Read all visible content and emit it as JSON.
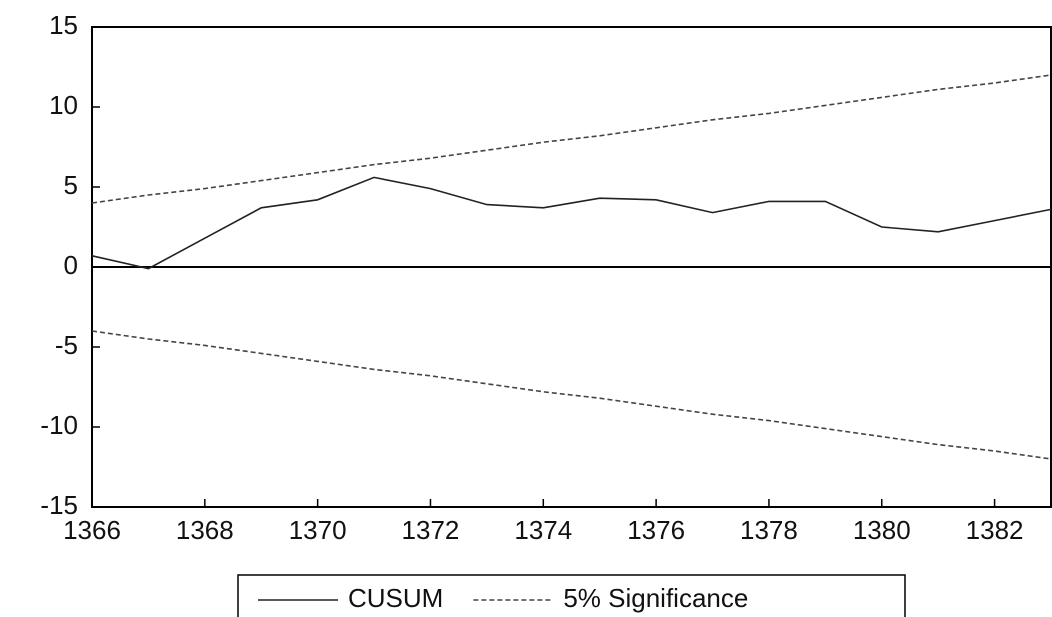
{
  "chart_data": {
    "type": "line",
    "x": [
      1366,
      1367,
      1368,
      1369,
      1370,
      1371,
      1372,
      1373,
      1374,
      1375,
      1376,
      1377,
      1378,
      1379,
      1380,
      1381,
      1382,
      1383
    ],
    "series": [
      {
        "name": "CUSUM",
        "color": "#222222",
        "values": [
          0.7,
          -0.1,
          1.8,
          3.7,
          4.2,
          5.6,
          4.9,
          3.9,
          3.7,
          4.3,
          4.2,
          3.4,
          4.1,
          4.1,
          2.5,
          2.2,
          2.9,
          3.6
        ]
      },
      {
        "name": "5% Significance",
        "color": "#444444",
        "dashed": true,
        "values": [
          4,
          4.5,
          4.9,
          5.4,
          5.9,
          6.4,
          6.8,
          7.3,
          7.8,
          8.2,
          8.7,
          9.2,
          9.6,
          10.1,
          10.6,
          11.1,
          11.5,
          12
        ],
        "lower": [
          -4,
          -4.5,
          -4.9,
          -5.4,
          -5.9,
          -6.4,
          -6.8,
          -7.3,
          -7.8,
          -8.2,
          -8.7,
          -9.2,
          -9.6,
          -10.1,
          -10.6,
          -11.1,
          -11.5,
          -12
        ]
      }
    ],
    "xlim": [
      1366,
      1383
    ],
    "xticks": [
      1366,
      1368,
      1370,
      1372,
      1374,
      1376,
      1378,
      1380,
      1382
    ],
    "ylim": [
      -15,
      15
    ],
    "yticks": [
      -15,
      -10,
      -5,
      0,
      5,
      10,
      15
    ],
    "zero_line": true,
    "legend": "bottom"
  }
}
